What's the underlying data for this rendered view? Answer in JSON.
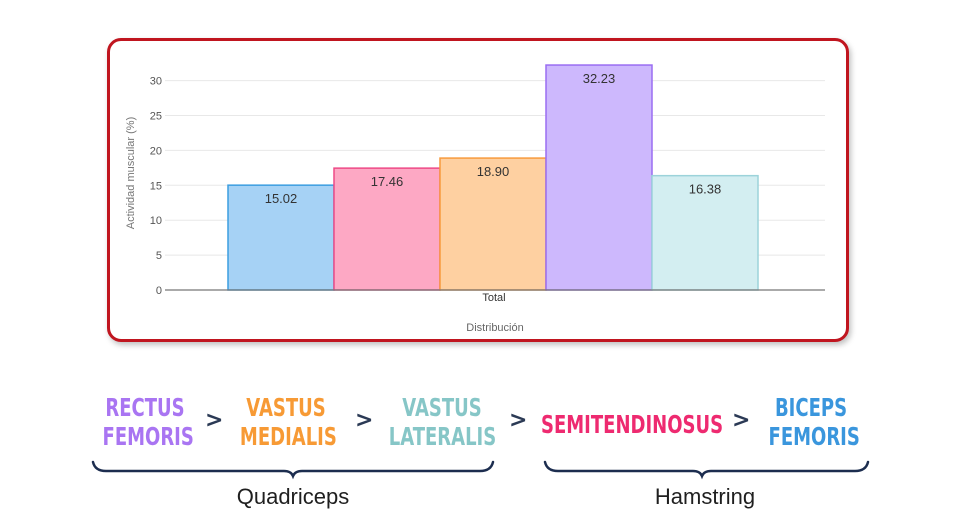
{
  "chart_data": {
    "type": "bar",
    "categories": [
      "Total"
    ],
    "series": [
      {
        "values": [
          15.02
        ],
        "label": "15.02",
        "color": "#a6d2f5",
        "stroke": "#3c9ee0"
      },
      {
        "values": [
          17.46
        ],
        "label": "17.46",
        "color": "#fda8c4",
        "stroke": "#ee4a86"
      },
      {
        "values": [
          18.9
        ],
        "label": "18.90",
        "color": "#fed0a1",
        "stroke": "#f79a3e"
      },
      {
        "values": [
          32.23
        ],
        "label": "32.23",
        "color": "#cdb8fd",
        "stroke": "#9a6df2"
      },
      {
        "values": [
          16.38
        ],
        "label": "16.38",
        "color": "#d3eef1",
        "stroke": "#9cd3da"
      }
    ],
    "xlabel": "Distribución",
    "ylabel": "Actividad muscular (%)",
    "ylim": [
      0,
      33
    ],
    "yticks": [
      "0",
      "5",
      "10",
      "15",
      "20",
      "25",
      "30"
    ],
    "grid": true
  },
  "sequence": {
    "muscles": [
      {
        "lines": [
          "RECTUS",
          "FEMORIS"
        ],
        "color": "#a975f2"
      },
      {
        "lines": [
          "VASTUS",
          "MEDIALIS"
        ],
        "color": "#f79a35"
      },
      {
        "lines": [
          "VASTUS",
          "LATERALIS"
        ],
        "color": "#86c6c7"
      },
      {
        "lines": [
          "SEMITENDINOSUS"
        ],
        "color": "#ee2a70"
      },
      {
        "lines": [
          "BICEPS",
          "FEMORIS"
        ],
        "color": "#3a96dd"
      }
    ],
    "separator": ">",
    "groups": [
      {
        "label": "Quadriceps"
      },
      {
        "label": "Hamstring"
      }
    ],
    "brace_color": "#1c2d4f"
  }
}
